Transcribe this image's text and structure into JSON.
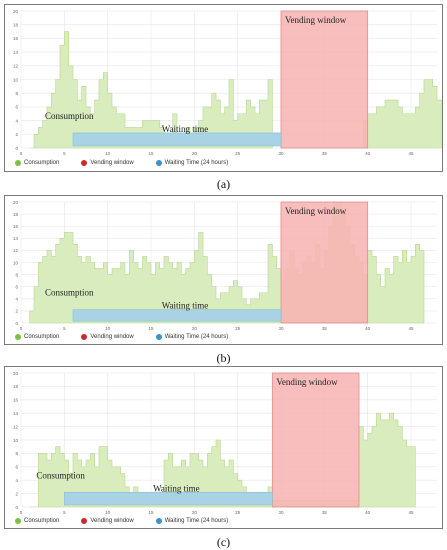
{
  "colors": {
    "consumption_fill": "#d9ecbe",
    "consumption_stroke": "#b6d88e",
    "vending_fill": "#f7b3b3",
    "vending_stroke": "#e58a8a",
    "waiting_fill": "#a9d3e4",
    "waiting_stroke": "#86bfd6",
    "overlap_fill": "#e8a78a",
    "grid": "#e6e6e6",
    "legend_consumption": "#7cc242",
    "legend_vending": "#cc2a2a",
    "legend_waiting": "#3f8fc9"
  },
  "chart_data": [
    {
      "panel": "a",
      "caption": "(a)",
      "type": "bar",
      "x_ticks": [
        0,
        5,
        10,
        15,
        20,
        25,
        30,
        35,
        40,
        45
      ],
      "y_ticks": [
        0,
        2,
        4,
        6,
        8,
        10,
        12,
        14,
        16,
        18,
        20
      ],
      "xlim": [
        0,
        48
      ],
      "ylim": [
        0,
        20
      ],
      "series": [
        {
          "name": "Consumption",
          "values": [
            0,
            2,
            3,
            4,
            6,
            8,
            10,
            15,
            17,
            12,
            10,
            7,
            9,
            6,
            5,
            7,
            10,
            11,
            8,
            6,
            5,
            5,
            3,
            3,
            3,
            3,
            4,
            4,
            4,
            4,
            3,
            2,
            2,
            5,
            2,
            2,
            3,
            2,
            3,
            4,
            6,
            6,
            8,
            7,
            5,
            6,
            10,
            4,
            5,
            5,
            7,
            6,
            5,
            7,
            7,
            10
          ]
        },
        {
          "name": "Vending window",
          "x_start": 30,
          "x_end": 40,
          "y_top": 20
        },
        {
          "name": "Waiting time",
          "x_start": 6,
          "x_end": 30,
          "y_from": 0.3,
          "y_to": 2.2
        }
      ],
      "consumption_x_start": 1,
      "consumption_step": 0.5,
      "consumption_after_window": [
        4,
        5,
        5,
        6,
        6,
        7,
        7,
        7,
        6,
        5,
        5,
        5,
        6,
        8,
        10,
        10,
        9,
        7
      ],
      "annotations": {
        "consumption_label": "Consumption",
        "waiting_label": "Waiting time",
        "vending_label": "Vending window"
      },
      "legend": [
        "Consumption",
        "Vending window",
        "Waiting Time (24 hours)"
      ]
    },
    {
      "panel": "b",
      "caption": "(b)",
      "type": "bar",
      "x_ticks": [
        0,
        5,
        10,
        15,
        20,
        25,
        30,
        35,
        40,
        45
      ],
      "y_ticks": [
        0,
        2,
        4,
        6,
        8,
        10,
        12,
        14,
        16,
        18,
        20
      ],
      "xlim": [
        0,
        48
      ],
      "ylim": [
        0,
        20
      ],
      "consumption_x_start": 1,
      "consumption_step": 0.5,
      "consumption_values": [
        2,
        6,
        10,
        11,
        12,
        11,
        13,
        14,
        15,
        15,
        13,
        11,
        10,
        11,
        10,
        9,
        9,
        10,
        8,
        9,
        9,
        10,
        8,
        12,
        10,
        9,
        11,
        10,
        8,
        10,
        9,
        11,
        10,
        9,
        10,
        8,
        9,
        10,
        12,
        15,
        11,
        8,
        6,
        4,
        5,
        5,
        6,
        7,
        6,
        4,
        3,
        4,
        4,
        5,
        5,
        13,
        11,
        9,
        7,
        9,
        12,
        9,
        8,
        10,
        11,
        10,
        13,
        9,
        12,
        16,
        20,
        20,
        18,
        16,
        13,
        11,
        10,
        8,
        12,
        11,
        8,
        6,
        9,
        8,
        11,
        10,
        12,
        10,
        11,
        13,
        12
      ],
      "series_b": {
        "vending": {
          "name": "Vending window",
          "x_start": 30,
          "x_end": 40,
          "y_top": 20
        },
        "waiting": {
          "name": "Waiting time",
          "x_start": 6,
          "x_end": 30,
          "y_from": 0.3,
          "y_to": 2.2
        }
      },
      "annotations": {
        "consumption_label": "Consumption",
        "waiting_label": "Waiting time",
        "vending_label": "Vending window"
      },
      "legend": [
        "Consumption",
        "Vending window",
        "Waiting Time (24 hours)"
      ]
    },
    {
      "panel": "c",
      "caption": "(c)",
      "type": "bar",
      "x_ticks": [
        0,
        5,
        10,
        15,
        20,
        25,
        30,
        35,
        40,
        45
      ],
      "y_ticks": [
        0,
        2,
        4,
        6,
        8,
        10,
        12,
        14,
        16,
        18,
        20
      ],
      "xlim": [
        0,
        48
      ],
      "ylim": [
        0,
        20
      ],
      "consumption_x_start": 1,
      "consumption_step": 0.5,
      "consumption_values": [
        0,
        0,
        8,
        8,
        7,
        8,
        9,
        8,
        7,
        5,
        8,
        7,
        6,
        7,
        8,
        6,
        9,
        9,
        7,
        6,
        6,
        5,
        3,
        2,
        3,
        2,
        2,
        2,
        1,
        1,
        1,
        7,
        8,
        6,
        6,
        7,
        6,
        8,
        8,
        7,
        6,
        8,
        9,
        10,
        7,
        6,
        7,
        5,
        4,
        3,
        2,
        1,
        2,
        1,
        1,
        3,
        1,
        1,
        1,
        1,
        1,
        1,
        1,
        1,
        1,
        1,
        1,
        1,
        1,
        1,
        1,
        1,
        1,
        1,
        1,
        1,
        12,
        10,
        11,
        12,
        14,
        13,
        13,
        14,
        13,
        12,
        10,
        9,
        9
      ],
      "series_c": {
        "vending": {
          "name": "Vending window",
          "x_start": 29,
          "x_end": 39,
          "y_top": 20
        },
        "waiting": {
          "name": "Waiting time",
          "x_start": 5,
          "x_end": 29,
          "y_from": 0.3,
          "y_to": 2.2
        }
      },
      "annotations": {
        "consumption_label": "Consumption",
        "waiting_label": "Waiting time",
        "vending_label": "Vending window"
      },
      "legend": [
        "Consumption",
        "Vending window",
        "Waiting Time (24 hours)"
      ]
    }
  ]
}
